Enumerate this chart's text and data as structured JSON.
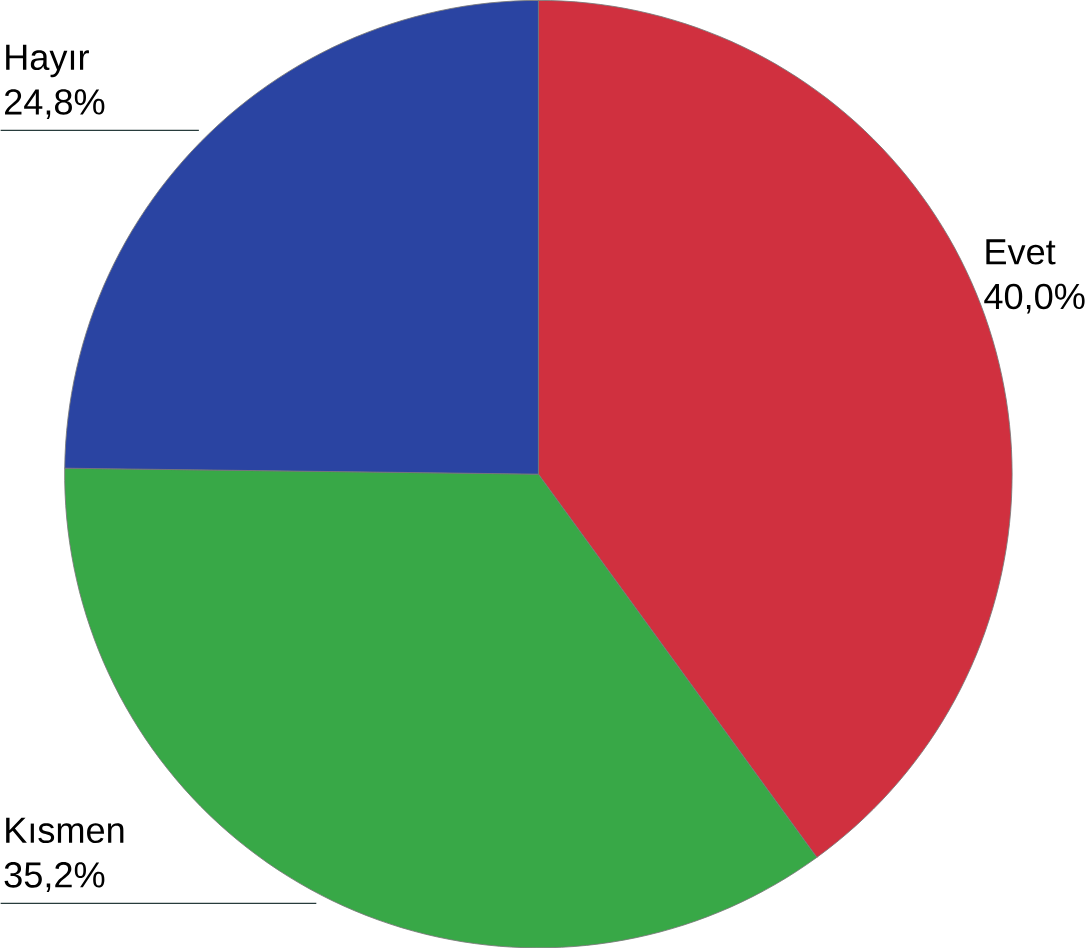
{
  "chart_data": {
    "type": "pie",
    "categories": [
      "Evet",
      "Kısmen",
      "Hayır"
    ],
    "values": [
      40.0,
      35.2,
      24.8
    ],
    "colors": [
      "#d0303f",
      "#38a847",
      "#2a44a2"
    ],
    "value_labels": [
      "40,0%",
      "35,2%",
      "24,8%"
    ]
  }
}
